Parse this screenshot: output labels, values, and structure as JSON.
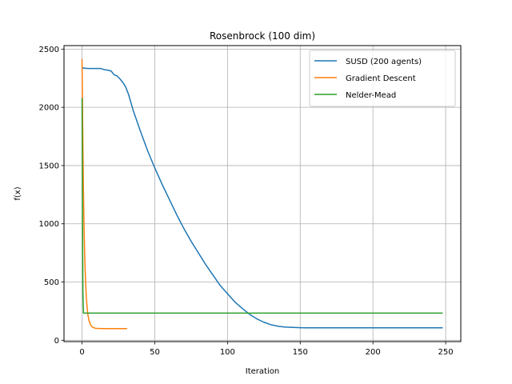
{
  "chart_data": {
    "type": "line",
    "title": "Rosenbrock (100 dim)",
    "xlabel": "Iteration",
    "ylabel": "f(x)",
    "xlim": [
      -12.4,
      260.4
    ],
    "ylim": [
      -11.5,
      2530
    ],
    "xticks": [
      0,
      50,
      100,
      150,
      200,
      250
    ],
    "yticks": [
      0,
      500,
      1000,
      1500,
      2000,
      2500
    ],
    "grid": true,
    "legend_position": "upper right",
    "series": [
      {
        "name": "SUSD (200 agents)",
        "color": "#1f77b4",
        "x": [
          0,
          1,
          2,
          5,
          10,
          13,
          15,
          18,
          20,
          22,
          24,
          26,
          28,
          30,
          32,
          35,
          40,
          45,
          50,
          55,
          60,
          65,
          70,
          75,
          80,
          85,
          90,
          95,
          100,
          105,
          110,
          115,
          120,
          125,
          130,
          135,
          140,
          145,
          150,
          155,
          160,
          170,
          180,
          200,
          220,
          248
        ],
        "y": [
          2330,
          2340,
          2335,
          2333,
          2333,
          2333,
          2325,
          2318,
          2312,
          2280,
          2270,
          2245,
          2215,
          2175,
          2110,
          1980,
          1800,
          1630,
          1480,
          1340,
          1210,
          1080,
          960,
          850,
          750,
          650,
          560,
          470,
          400,
          330,
          275,
          225,
          185,
          155,
          133,
          120,
          113,
          110,
          108,
          107,
          107,
          107,
          107,
          107,
          107,
          107
        ]
      },
      {
        "name": "Gradient Descent",
        "color": "#ff7f0e",
        "x": [
          0,
          0.5,
          1,
          1.5,
          2,
          2.5,
          3,
          3.5,
          4,
          5,
          6,
          7,
          8,
          9,
          10,
          12,
          14,
          16,
          20,
          25,
          31
        ],
        "y": [
          2415,
          1800,
          1250,
          900,
          650,
          480,
          360,
          280,
          220,
          160,
          130,
          115,
          108,
          104,
          102,
          101,
          100,
          100,
          100,
          100,
          100
        ]
      },
      {
        "name": "Nelder-Mead",
        "color": "#2ca02c",
        "x": [
          0,
          0.3,
          0.6,
          1,
          2,
          50,
          100,
          150,
          200,
          248
        ],
        "y": [
          2080,
          1100,
          400,
          233,
          233,
          233,
          233,
          233,
          233,
          233
        ]
      }
    ]
  }
}
